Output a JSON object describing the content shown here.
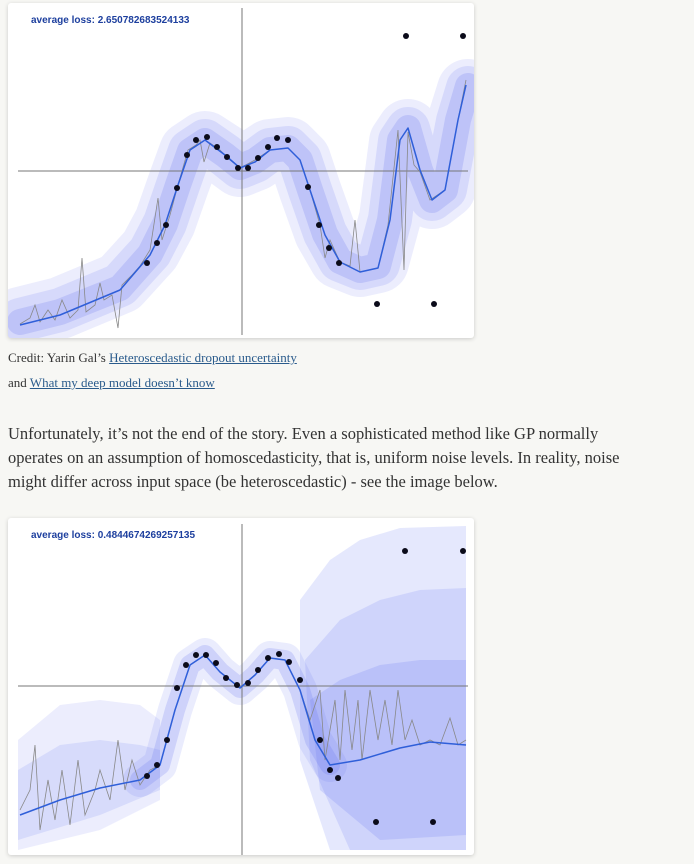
{
  "figure1": {
    "loss_label": "average loss: 2.650782683524133"
  },
  "caption": {
    "prefix": "Credit: Yarin Gal’s",
    "link1": "Heteroscedastic dropout uncertainty",
    "middle": "and",
    "link2": "What my deep model doesn’t know"
  },
  "paragraph": {
    "lines": [
      "Unfortunately, it’s not the end of the story. Even a sophisticated method like GP normally",
      "operates on an assumption of homoscedasticity, that is, uniform noise levels. In reality, noise",
      "might differ across input space (be heteroscedastic) - see the image below."
    ]
  },
  "figure2": {
    "loss_label": "average loss: 0.4844674269257135"
  }
}
